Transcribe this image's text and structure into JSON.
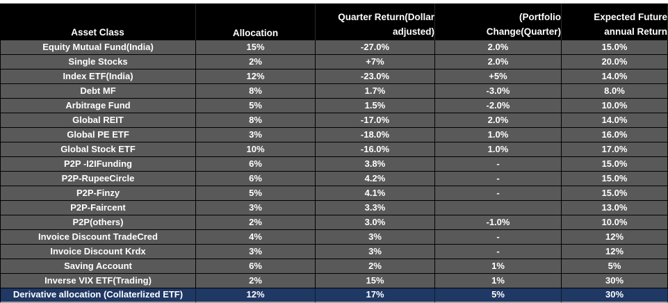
{
  "table": {
    "headers": {
      "asset_class": "Asset Class",
      "allocation": "Allocation",
      "quarter_return_l1": "Quarter Return(Dollar",
      "quarter_return_l2": "adjusted)",
      "portfolio_change_l1": "(Portfolio",
      "portfolio_change_l2": "Change(Quarter)",
      "expected_return_l1": "Expected Future",
      "expected_return_l2": "annual Return"
    },
    "rows": [
      [
        "Equity Mutual Fund(India)",
        "15%",
        "-27.0%",
        "2.0%",
        "15.0%"
      ],
      [
        "Single Stocks",
        "2%",
        "+7%",
        "2.0%",
        "20.0%"
      ],
      [
        "Index ETF(India)",
        "12%",
        "-23.0%",
        "+5%",
        "14.0%"
      ],
      [
        "Debt MF",
        "8%",
        "1.7%",
        "-3.0%",
        "8.0%"
      ],
      [
        "Arbitrage Fund",
        "5%",
        "1.5%",
        "-2.0%",
        "10.0%"
      ],
      [
        "Global REIT",
        "8%",
        "-17.0%",
        "2.0%",
        "14.0%"
      ],
      [
        "Global PE ETF",
        "3%",
        "-18.0%",
        "1.0%",
        "16.0%"
      ],
      [
        "Global  Stock ETF",
        "10%",
        "-16.0%",
        "1.0%",
        "17.0%"
      ],
      [
        "P2P -I2IFunding",
        "6%",
        "3.8%",
        "-",
        "15.0%"
      ],
      [
        "P2P-RupeeCircle",
        "6%",
        "4.2%",
        "-",
        "15.0%"
      ],
      [
        "P2P-Finzy",
        "5%",
        "4.1%",
        "-",
        "15.0%"
      ],
      [
        "P2P-Faircent",
        "3%",
        "3.3%",
        "",
        "13.0%"
      ],
      [
        "P2P(others)",
        "2%",
        "3.0%",
        "-1.0%",
        "10.0%"
      ],
      [
        "Invoice Discount TradeCred",
        "4%",
        "3%",
        "-",
        "12%"
      ],
      [
        "Invoice Discount Krdx",
        "3%",
        "3%",
        "-",
        "12%"
      ],
      [
        "Saving Account",
        "6%",
        "2%",
        "1%",
        "5%"
      ],
      [
        "Inverse VIX ETF(Trading)",
        "2%",
        "15%",
        "1%",
        "30%"
      ],
      [
        "Derivative allocation (Collaterlized ETF)",
        "12%",
        "17%",
        "5%",
        "30%"
      ]
    ]
  },
  "colors": {
    "header_bg": "#000000",
    "row_bg": "#595959",
    "highlight_row_bg": "#1f3864",
    "text": "#ffffff"
  }
}
